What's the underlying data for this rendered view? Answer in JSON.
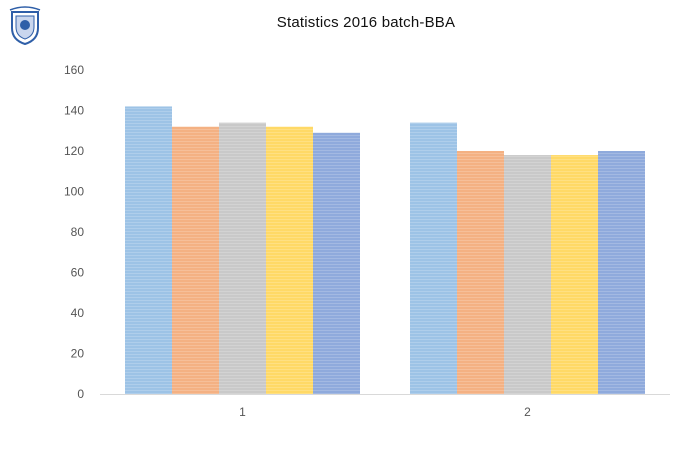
{
  "colors": {
    "background": "#ffffff",
    "axis": "#d9d9d9",
    "tick_text": "#555555",
    "logo": "#2f5fa8"
  },
  "logo": {
    "icon": "university-crest-icon"
  },
  "chart_data": {
    "type": "bar",
    "title": "Statistics 2016 batch-BBA",
    "xlabel": "",
    "ylabel": "",
    "categories": [
      "1",
      "2"
    ],
    "ylim": [
      0,
      160
    ],
    "yticks": [
      0,
      20,
      40,
      60,
      80,
      100,
      120,
      140,
      160
    ],
    "grid": false,
    "legend": "none",
    "series": [
      {
        "color": "#9dc3e6",
        "values": [
          142,
          134
        ]
      },
      {
        "color": "#f4b183",
        "values": [
          132,
          120
        ]
      },
      {
        "color": "#c9c9c9",
        "values": [
          134,
          118
        ]
      },
      {
        "color": "#ffd966",
        "values": [
          132,
          118
        ]
      },
      {
        "color": "#8faadc",
        "values": [
          129,
          120
        ]
      }
    ]
  }
}
